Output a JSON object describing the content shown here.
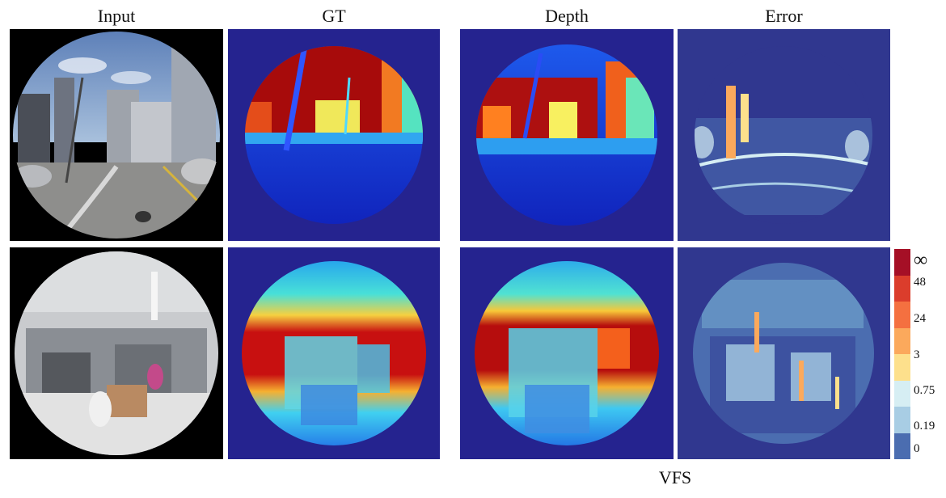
{
  "columns": [
    "Input",
    "GT",
    "Depth",
    "Error"
  ],
  "colorbar": {
    "colors": [
      "#a50f26",
      "#db3d2c",
      "#f47040",
      "#fba95c",
      "#fde08c",
      "#d6eef3",
      "#a8cde4",
      "#6e9fcb",
      "#4b6db0",
      "#30378f"
    ],
    "labels": [
      "∞",
      "48",
      "24",
      "3",
      "0.75",
      "0.19",
      "0"
    ]
  },
  "caption": "VFS"
}
